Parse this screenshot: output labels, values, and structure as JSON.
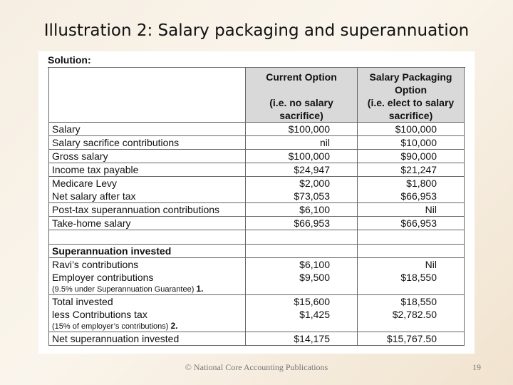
{
  "slide_title": "Illustration 2:  Salary packaging and superannuation",
  "solution_label": "Solution:",
  "header": {
    "current_title": "Current Option",
    "current_sub": "(i.e. no salary sacrifice)",
    "packaging_title": "Salary Packaging Option",
    "packaging_sub": "(i.e. elect to salary sacrifice)"
  },
  "rows_a": [
    {
      "label": "Salary",
      "current": "$100,000",
      "packaging": "$100,000"
    },
    {
      "label": "Salary sacrifice contributions",
      "current": "nil",
      "packaging": "$10,000"
    },
    {
      "label": "Gross salary",
      "current": "$100,000",
      "packaging": "$90,000"
    },
    {
      "label": "Income tax payable",
      "current": "$24,947",
      "packaging": "$21,247"
    }
  ],
  "rows_b": {
    "labels": [
      "Medicare Levy",
      "Net salary after tax"
    ],
    "current": [
      "$2,000",
      "$73,053"
    ],
    "packaging": [
      "$1,800",
      "$66,953"
    ]
  },
  "rows_c": [
    {
      "label": "Post-tax superannuation contributions",
      "current": "$6,100",
      "packaging": "Nil"
    },
    {
      "label": "Take-home salary",
      "current": "$66,953",
      "packaging": "$66,953"
    }
  ],
  "super_heading": "Superannuation invested",
  "super_rows": {
    "ravi": {
      "label": "Ravi’s contributions",
      "current": "$6,100",
      "packaging": "Nil"
    },
    "employer": {
      "label": "Employer contributions",
      "note": "(9.5% under Superannuation Guarantee)",
      "note_num": "1.",
      "current": "$9,500",
      "packaging": "$18,550"
    },
    "total": {
      "label": "Total invested",
      "current": "$15,600",
      "packaging": "$18,550"
    },
    "less_tax": {
      "label": "less Contributions tax",
      "note": "(15% of employer’s contributions)",
      "note_num": "2.",
      "current": "$1,425",
      "packaging": "$2,782.50"
    },
    "net": {
      "label": "Net superannuation invested",
      "current": "$14,175",
      "packaging": "$15,767.50"
    }
  },
  "footer": "© National Core Accounting Publications",
  "page_number": "19"
}
